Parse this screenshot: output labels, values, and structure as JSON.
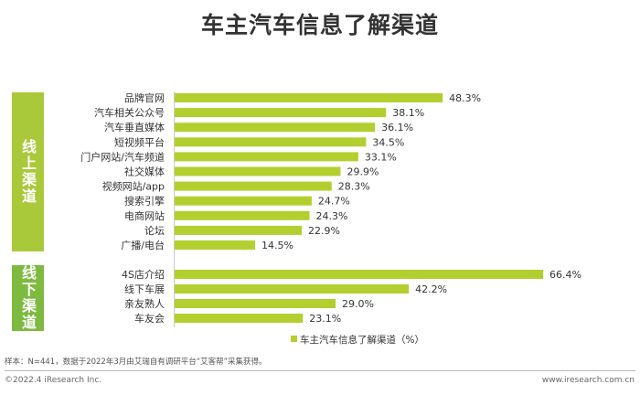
{
  "header": {
    "title": "车主汽车信息了解渠道"
  },
  "groups": {
    "online": "线上渠道",
    "offline": "线下渠道"
  },
  "chart_data": {
    "type": "bar",
    "orientation": "horizontal",
    "title": "车主汽车信息了解渠道",
    "legend": "车主汽车信息了解渠道（%）",
    "legend_position": "bottom",
    "bar_color": "#b3cf2f",
    "categories": [
      "品牌官网",
      "汽车相关公众号",
      "汽车垂直媒体",
      "短视频平台",
      "门户网站/汽车频道",
      "社交媒体",
      "视频网站/app",
      "搜索引擎",
      "电商网站",
      "论坛",
      "广播/电台",
      "4S店介绍",
      "线下车展",
      "亲友熟人",
      "车友会"
    ],
    "values": [
      48.3,
      38.1,
      36.1,
      34.5,
      33.1,
      29.9,
      28.3,
      24.7,
      24.3,
      22.9,
      14.5,
      66.4,
      42.2,
      29.0,
      23.1
    ],
    "labels": [
      "48.3%",
      "38.1%",
      "36.1%",
      "34.5%",
      "33.1%",
      "29.9%",
      "28.3%",
      "24.7%",
      "24.3%",
      "22.9%",
      "14.5%",
      "66.4%",
      "42.2%",
      "29.0%",
      "23.1%"
    ],
    "group": [
      "online",
      "online",
      "online",
      "online",
      "online",
      "online",
      "online",
      "online",
      "online",
      "online",
      "online",
      "offline",
      "offline",
      "offline",
      "offline"
    ],
    "unit": "%"
  },
  "footer": {
    "note": "样本：N=441，数据于2022年3月由艾瑞自有调研平台“艾客帮”采集获得。",
    "copyright": "©2022.4 iResearch Inc.",
    "website": "www.iresearch.com.cn"
  }
}
